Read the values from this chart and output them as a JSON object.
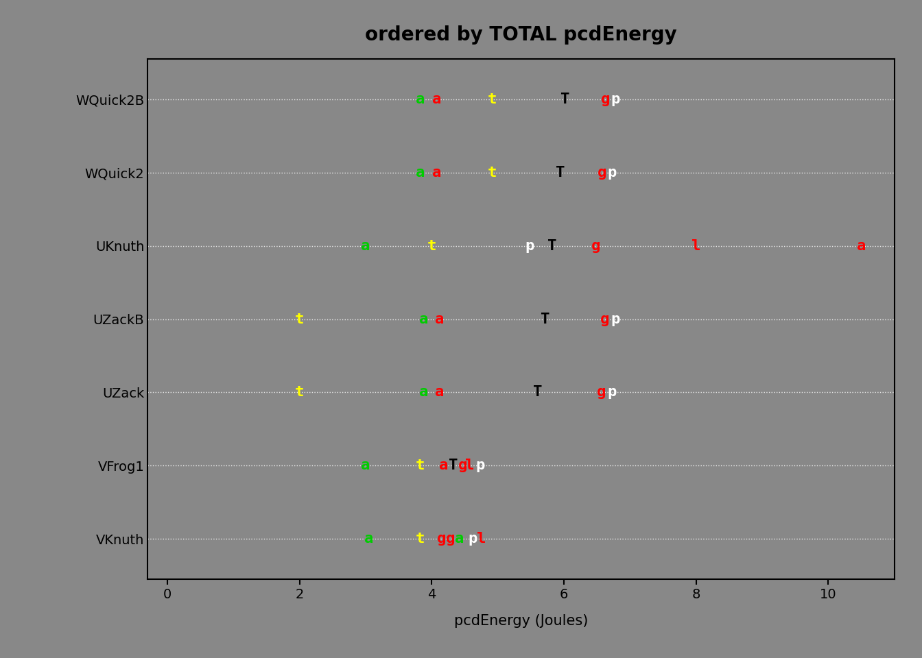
{
  "title": "ordered by TOTAL pcdEnergy",
  "xlabel": "pcdEnergy (Joules)",
  "background_color": "#888888",
  "plot_background_color": "#888888",
  "xlim": [
    -0.3,
    11.0
  ],
  "xticks": [
    0,
    2,
    4,
    6,
    8,
    10
  ],
  "algorithms": [
    "WQuick2B",
    "WQuick2",
    "UKnuth",
    "UZackB",
    "UZack",
    "VFrog1",
    "VKnuth"
  ],
  "markers": {
    "WQuick2B": [
      {
        "label": "a",
        "x": 3.83,
        "color": "#00cc00",
        "size": 16
      },
      {
        "label": "a",
        "x": 4.08,
        "color": "#ff0000",
        "size": 16
      },
      {
        "label": "t",
        "x": 4.92,
        "color": "#ffff00",
        "size": 16
      },
      {
        "label": "T",
        "x": 6.02,
        "color": "#000000",
        "size": 16
      },
      {
        "label": "g",
        "x": 6.63,
        "color": "#ff0000",
        "size": 16
      },
      {
        "label": "p",
        "x": 6.78,
        "color": "#ffffff",
        "size": 16
      }
    ],
    "WQuick2": [
      {
        "label": "a",
        "x": 3.83,
        "color": "#00cc00",
        "size": 16
      },
      {
        "label": "a",
        "x": 4.08,
        "color": "#ff0000",
        "size": 16
      },
      {
        "label": "t",
        "x": 4.92,
        "color": "#ffff00",
        "size": 16
      },
      {
        "label": "T",
        "x": 5.95,
        "color": "#000000",
        "size": 16
      },
      {
        "label": "g",
        "x": 6.58,
        "color": "#ff0000",
        "size": 16
      },
      {
        "label": "p",
        "x": 6.73,
        "color": "#ffffff",
        "size": 16
      }
    ],
    "UKnuth": [
      {
        "label": "a",
        "x": 3.0,
        "color": "#00cc00",
        "size": 16
      },
      {
        "label": "t",
        "x": 4.0,
        "color": "#ffff00",
        "size": 16
      },
      {
        "label": "p",
        "x": 5.48,
        "color": "#ffffff",
        "size": 16
      },
      {
        "label": "T",
        "x": 5.82,
        "color": "#000000",
        "size": 16
      },
      {
        "label": "g",
        "x": 6.48,
        "color": "#ff0000",
        "size": 16
      },
      {
        "label": "l",
        "x": 8.0,
        "color": "#ff0000",
        "size": 16
      },
      {
        "label": "a",
        "x": 10.5,
        "color": "#ff0000",
        "size": 16
      }
    ],
    "UZackB": [
      {
        "label": "t",
        "x": 2.0,
        "color": "#ffff00",
        "size": 16
      },
      {
        "label": "a",
        "x": 3.88,
        "color": "#00cc00",
        "size": 16
      },
      {
        "label": "a",
        "x": 4.12,
        "color": "#ff0000",
        "size": 16
      },
      {
        "label": "T",
        "x": 5.72,
        "color": "#000000",
        "size": 16
      },
      {
        "label": "g",
        "x": 6.62,
        "color": "#ff0000",
        "size": 16
      },
      {
        "label": "p",
        "x": 6.78,
        "color": "#ffffff",
        "size": 16
      }
    ],
    "UZack": [
      {
        "label": "t",
        "x": 2.0,
        "color": "#ffff00",
        "size": 16
      },
      {
        "label": "a",
        "x": 3.88,
        "color": "#00cc00",
        "size": 16
      },
      {
        "label": "a",
        "x": 4.12,
        "color": "#ff0000",
        "size": 16
      },
      {
        "label": "T",
        "x": 5.6,
        "color": "#000000",
        "size": 16
      },
      {
        "label": "g",
        "x": 6.57,
        "color": "#ff0000",
        "size": 16
      },
      {
        "label": "p",
        "x": 6.73,
        "color": "#ffffff",
        "size": 16
      }
    ],
    "VFrog1": [
      {
        "label": "a",
        "x": 3.0,
        "color": "#00cc00",
        "size": 16
      },
      {
        "label": "t",
        "x": 3.82,
        "color": "#ffff00",
        "size": 16
      },
      {
        "label": "a",
        "x": 4.18,
        "color": "#ff0000",
        "size": 16
      },
      {
        "label": "T",
        "x": 4.33,
        "color": "#000000",
        "size": 16
      },
      {
        "label": "g",
        "x": 4.47,
        "color": "#ff0000",
        "size": 16
      },
      {
        "label": "l",
        "x": 4.57,
        "color": "#ff0000",
        "size": 16
      },
      {
        "label": "p",
        "x": 4.73,
        "color": "#ffffff",
        "size": 16
      }
    ],
    "VKnuth": [
      {
        "label": "a",
        "x": 3.05,
        "color": "#00cc00",
        "size": 16
      },
      {
        "label": "t",
        "x": 3.82,
        "color": "#ffff00",
        "size": 16
      },
      {
        "label": "g",
        "x": 4.15,
        "color": "#ff0000",
        "size": 16
      },
      {
        "label": "g",
        "x": 4.28,
        "color": "#ff0000",
        "size": 16
      },
      {
        "label": "a",
        "x": 4.42,
        "color": "#00cc00",
        "size": 16
      },
      {
        "label": "p",
        "x": 4.62,
        "color": "#ffffff",
        "size": 16
      },
      {
        "label": "l",
        "x": 4.75,
        "color": "#ff0000",
        "size": 16
      }
    ]
  }
}
